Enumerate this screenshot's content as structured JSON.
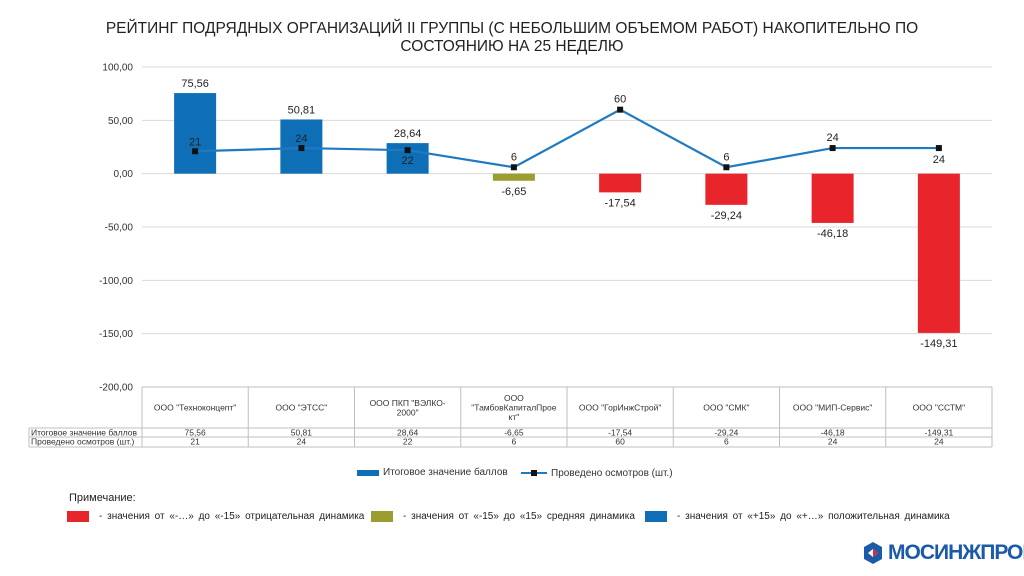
{
  "title_line1": "РЕЙТИНГ ПОДРЯДНЫХ ОРГАНИЗАЦИЙ II ГРУППЫ (С НЕБОЛЬШИМ ОБЪЕМОМ РАБОТ) НАКОПИТЕЛЬНО ПО",
  "title_line2": "СОСТОЯНИЮ НА 25 НЕДЕЛЮ",
  "colors": {
    "positive": "#0e6fb7",
    "neutral": "#9c9d2f",
    "negative": "#e8252b",
    "line": "#1f7ac2"
  },
  "chart_data": {
    "type": "bar",
    "categories": [
      "ООО \"Техноконцепт\"",
      "ООО \"ЭТСС\"",
      "ООО ПКП \"ВЭЛКО-2000\"",
      "ООО \"ТамбовКапиталПроект\"",
      "ООО \"ГорИнжСтрой\"",
      "ООО \"СМК\"",
      "ООО \"МИП-Сервис\"",
      "ООО \"ССТМ\""
    ],
    "category_labels": [
      [
        "ООО \"Техноконцепт\""
      ],
      [
        "ООО \"ЭТСС\""
      ],
      [
        "ООО ПКП \"ВЭЛКО-",
        "2000\""
      ],
      [
        "ООО",
        "\"ТамбовКапиталПрое",
        "кт\""
      ],
      [
        "ООО \"ГорИнжСтрой\""
      ],
      [
        "ООО \"СМК\""
      ],
      [
        "ООО \"МИП-Сервис\""
      ],
      [
        "ООО \"ССТМ\""
      ]
    ],
    "series": [
      {
        "name": "Итоговое значение баллов",
        "kind": "bar",
        "values": [
          75.56,
          50.81,
          28.64,
          -6.65,
          -17.54,
          -29.24,
          -46.18,
          -149.31
        ],
        "labels": [
          "75,56",
          "50,81",
          "28,64",
          "-6,65",
          "-17,54",
          "-29,24",
          "-46,18",
          "-149,31"
        ],
        "bar_colors": [
          "#0e6fb7",
          "#0e6fb7",
          "#0e6fb7",
          "#9c9d2f",
          "#e8252b",
          "#e8252b",
          "#e8252b",
          "#e8252b"
        ]
      },
      {
        "name": "Проведено осмотров (шт.)",
        "kind": "line",
        "values": [
          21,
          24,
          22,
          6,
          60,
          6,
          24,
          24
        ],
        "labels": [
          "21",
          "24",
          "22",
          "6",
          "60",
          "6",
          "24",
          "24"
        ]
      }
    ],
    "ylim": [
      -200,
      100
    ],
    "yticks": [
      100,
      50,
      0,
      -50,
      -100,
      -150,
      -200
    ],
    "ytick_labels": [
      "100,00",
      "50,00",
      "0,00",
      "-50,00",
      "-100,00",
      "-150,00",
      "-200,00"
    ],
    "grid": true,
    "data_table": {
      "row_headers": [
        "Итоговое значение баллов",
        "Проведено осмотров (шт.)"
      ],
      "rows": [
        [
          "75,56",
          "50,81",
          "28,64",
          "-6,65",
          "-17,54",
          "-29,24",
          "-46,18",
          "-149,31"
        ],
        [
          "21",
          "24",
          "22",
          "6",
          "60",
          "6",
          "24",
          "24"
        ]
      ]
    },
    "legend_position": "bottom"
  },
  "legend": {
    "bar_label": "Итоговое значение баллов",
    "line_label": "Проведено осмотров (шт.)"
  },
  "note": {
    "title": "Примечание:",
    "items": [
      "- значения от «-…» до «-15» отрицательная  динамика",
      "- значения от «-15» до «15» средняя динамика",
      "- значения от «+15» до «+…» положительная  динамика"
    ]
  },
  "logo": {
    "text": "МОСИНЖПРОЕКТ",
    "color": "#1b5aa8",
    "accent": "#e8252b"
  }
}
